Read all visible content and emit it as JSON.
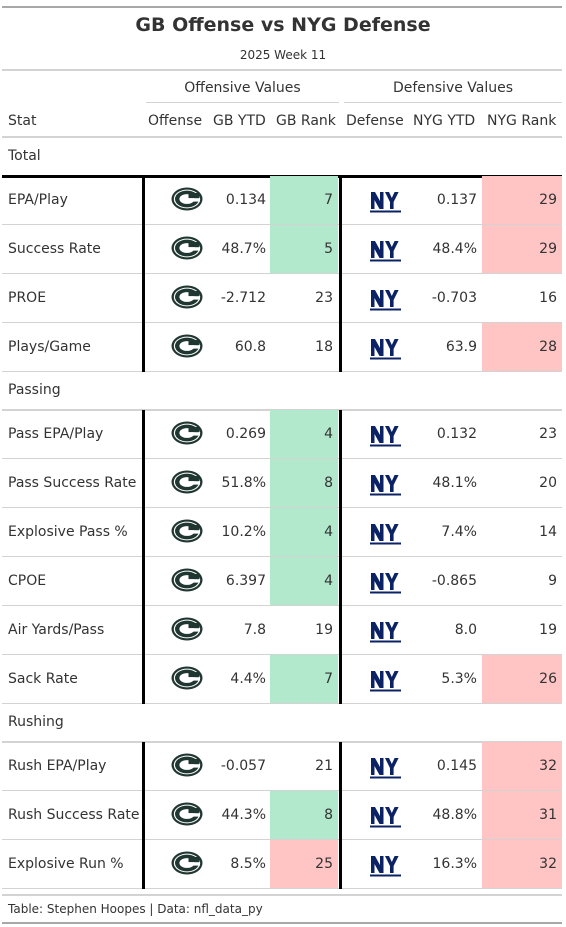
{
  "title": "GB Offense vs NYG Defense",
  "subtitle": "2025 Week 11",
  "spanners": {
    "offense": "Offensive Values",
    "defense": "Defensive Values"
  },
  "columns": {
    "stat": "Stat",
    "offense": "Offense",
    "off_ytd": "GB YTD",
    "off_rank": "GB Rank",
    "defense": "Defense",
    "def_ytd": "NYG YTD",
    "def_rank": "NYG Rank"
  },
  "logos": {
    "offense": "packers-g-logo",
    "defense": "giants-ny-logo"
  },
  "colors": {
    "good": "#b2e8cc",
    "bad": "#ffc4c4",
    "packers_green": "#203731",
    "giants_blue": "#0b2265"
  },
  "groups": [
    {
      "label": "Total",
      "rows": [
        {
          "stat": "EPA/Play",
          "off_ytd": "0.134",
          "off_rank": "7",
          "off_shade": "good",
          "def_ytd": "0.137",
          "def_rank": "29",
          "def_shade": "bad"
        },
        {
          "stat": "Success Rate",
          "off_ytd": "48.7%",
          "off_rank": "5",
          "off_shade": "good",
          "def_ytd": "48.4%",
          "def_rank": "29",
          "def_shade": "bad"
        },
        {
          "stat": "PROE",
          "off_ytd": "-2.712",
          "off_rank": "23",
          "off_shade": "",
          "def_ytd": "-0.703",
          "def_rank": "16",
          "def_shade": ""
        },
        {
          "stat": "Plays/Game",
          "off_ytd": "60.8",
          "off_rank": "18",
          "off_shade": "",
          "def_ytd": "63.9",
          "def_rank": "28",
          "def_shade": "bad"
        }
      ]
    },
    {
      "label": "Passing",
      "rows": [
        {
          "stat": "Pass EPA/Play",
          "off_ytd": "0.269",
          "off_rank": "4",
          "off_shade": "good",
          "def_ytd": "0.132",
          "def_rank": "23",
          "def_shade": ""
        },
        {
          "stat": "Pass Success Rate",
          "off_ytd": "51.8%",
          "off_rank": "8",
          "off_shade": "good",
          "def_ytd": "48.1%",
          "def_rank": "20",
          "def_shade": ""
        },
        {
          "stat": "Explosive Pass %",
          "off_ytd": "10.2%",
          "off_rank": "4",
          "off_shade": "good",
          "def_ytd": "7.4%",
          "def_rank": "14",
          "def_shade": ""
        },
        {
          "stat": "CPOE",
          "off_ytd": "6.397",
          "off_rank": "4",
          "off_shade": "good",
          "def_ytd": "-0.865",
          "def_rank": "9",
          "def_shade": ""
        },
        {
          "stat": "Air Yards/Pass",
          "off_ytd": "7.8",
          "off_rank": "19",
          "off_shade": "",
          "def_ytd": "8.0",
          "def_rank": "19",
          "def_shade": ""
        },
        {
          "stat": "Sack Rate",
          "off_ytd": "4.4%",
          "off_rank": "7",
          "off_shade": "good",
          "def_ytd": "5.3%",
          "def_rank": "26",
          "def_shade": "bad"
        }
      ]
    },
    {
      "label": "Rushing",
      "rows": [
        {
          "stat": "Rush EPA/Play",
          "off_ytd": "-0.057",
          "off_rank": "21",
          "off_shade": "",
          "def_ytd": "0.145",
          "def_rank": "32",
          "def_shade": "bad"
        },
        {
          "stat": "Rush Success Rate",
          "off_ytd": "44.3%",
          "off_rank": "8",
          "off_shade": "good",
          "def_ytd": "48.8%",
          "def_rank": "31",
          "def_shade": "bad"
        },
        {
          "stat": "Explosive Run %",
          "off_ytd": "8.5%",
          "off_rank": "25",
          "off_shade": "bad",
          "def_ytd": "16.3%",
          "def_rank": "32",
          "def_shade": "bad"
        }
      ]
    }
  ],
  "footer": "Table: Stephen Hoopes | Data: nfl_data_py"
}
